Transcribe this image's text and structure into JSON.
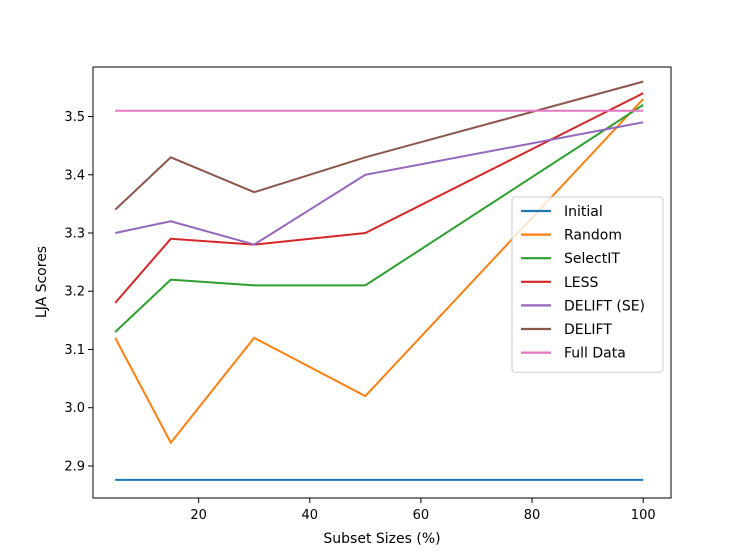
{
  "chart_data": {
    "type": "line",
    "title": "",
    "xlabel": "Subset Sizes (%)",
    "ylabel": "LJA Scores",
    "xlim": [
      1,
      105
    ],
    "ylim": [
      2.845,
      3.585
    ],
    "xticks": [
      20,
      40,
      60,
      80,
      100
    ],
    "yticks": [
      2.9,
      3.0,
      3.1,
      3.2,
      3.3,
      3.4,
      3.5
    ],
    "ytick_labels": [
      "2.9",
      "3.0",
      "3.1",
      "3.2",
      "3.3",
      "3.4",
      "3.5"
    ],
    "grid": false,
    "legend_position": "center-right",
    "x": [
      5,
      15,
      30,
      50,
      100
    ],
    "series": [
      {
        "name": "Initial",
        "color": "#1f77b4",
        "x": [
          5,
          100
        ],
        "values": [
          2.876,
          2.876
        ]
      },
      {
        "name": "Random",
        "color": "#ff7f0e",
        "x": [
          5,
          15,
          30,
          50,
          100
        ],
        "values": [
          3.12,
          2.94,
          3.12,
          3.02,
          3.53
        ]
      },
      {
        "name": "SelectIT",
        "color": "#2ca02c",
        "x": [
          5,
          15,
          30,
          50,
          100
        ],
        "values": [
          3.13,
          3.22,
          3.21,
          3.21,
          3.52
        ]
      },
      {
        "name": "LESS",
        "color": "#d62728",
        "x": [
          5,
          15,
          30,
          50,
          100
        ],
        "values": [
          3.18,
          3.29,
          3.28,
          3.3,
          3.54
        ]
      },
      {
        "name": "DELIFT (SE)",
        "color": "#9467bd",
        "x": [
          5,
          15,
          30,
          50,
          100
        ],
        "values": [
          3.3,
          3.32,
          3.28,
          3.4,
          3.49
        ]
      },
      {
        "name": "DELIFT",
        "color": "#8c564b",
        "x": [
          5,
          15,
          30,
          50,
          100
        ],
        "values": [
          3.34,
          3.43,
          3.37,
          3.43,
          3.56
        ]
      },
      {
        "name": "Full Data",
        "color": "#e377c2",
        "x": [
          5,
          100
        ],
        "values": [
          3.51,
          3.51
        ]
      }
    ]
  }
}
